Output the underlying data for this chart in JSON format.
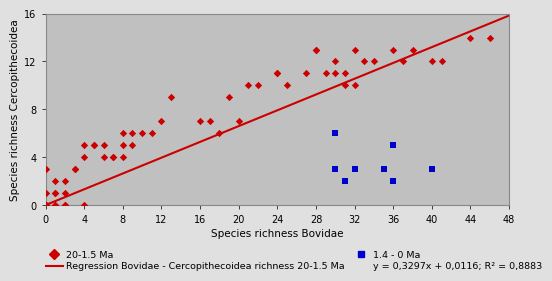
{
  "red_x": [
    0,
    0,
    0,
    0,
    0,
    0,
    1,
    1,
    1,
    1,
    1,
    2,
    2,
    2,
    2,
    3,
    3,
    4,
    4,
    4,
    5,
    5,
    6,
    6,
    7,
    7,
    8,
    8,
    8,
    9,
    9,
    10,
    11,
    12,
    13,
    16,
    17,
    18,
    19,
    20,
    21,
    22,
    24,
    24,
    25,
    27,
    28,
    28,
    29,
    30,
    30,
    31,
    31,
    32,
    32,
    33,
    34,
    36,
    37,
    38,
    40,
    41,
    44,
    46
  ],
  "red_y": [
    0,
    0,
    0,
    0,
    1,
    3,
    0,
    0,
    1,
    1,
    2,
    0,
    0,
    1,
    2,
    3,
    3,
    0,
    4,
    5,
    5,
    5,
    4,
    5,
    4,
    4,
    4,
    5,
    6,
    5,
    6,
    6,
    6,
    7,
    9,
    7,
    7,
    6,
    9,
    7,
    10,
    10,
    11,
    11,
    10,
    11,
    13,
    13,
    11,
    11,
    12,
    11,
    10,
    10,
    13,
    12,
    12,
    13,
    12,
    13,
    12,
    12,
    14,
    14
  ],
  "blue_x": [
    30,
    30,
    31,
    32,
    35,
    36,
    36,
    40
  ],
  "blue_y": [
    6,
    3,
    2,
    3,
    3,
    2,
    5,
    3
  ],
  "slope": 0.3297,
  "intercept": 0.0116,
  "xlim": [
    0,
    48
  ],
  "ylim": [
    0,
    16
  ],
  "xticks": [
    0,
    4,
    8,
    12,
    16,
    20,
    24,
    28,
    32,
    36,
    40,
    44,
    48
  ],
  "yticks": [
    0,
    4,
    8,
    12,
    16
  ],
  "xlabel": "Species richness Bovidae",
  "ylabel": "Species richness Cercopithecoidea",
  "red_label": "20-1.5 Ma",
  "blue_label": "1.4 - 0 Ma",
  "reg_label": "Regression Bovidae - Cercopithecoidea richness 20-1.5 Ma",
  "eq_label": "y = 0,3297x + 0,0116; R² = 0,8883",
  "plot_bg": "#c0c0c0",
  "fig_bg": "#e0e0e0",
  "red_color": "#cc0000",
  "blue_color": "#0000cc",
  "line_color": "#cc0000"
}
